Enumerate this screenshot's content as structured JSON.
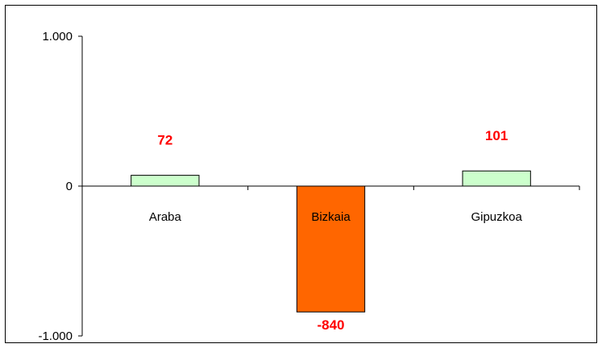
{
  "chart_data": {
    "type": "bar",
    "categories": [
      "Araba",
      "Bizkaia",
      "Gipuzkoa"
    ],
    "values": [
      72,
      -840,
      101
    ],
    "data_labels": [
      "72",
      "-840",
      "101"
    ],
    "y_ticks": [
      1000,
      0,
      -1000
    ],
    "y_tick_labels": [
      "1.000",
      "0",
      "-1.000"
    ],
    "ylim": [
      -1000,
      1000
    ],
    "grid": false,
    "legend": false,
    "title": "",
    "xlabel": "",
    "ylabel": "",
    "colors": {
      "positive_bar": "#ccffcc",
      "negative_bar": "#ff6600",
      "bar_stroke": "#000000",
      "data_label": "#ff0000",
      "axis": "#000000"
    }
  }
}
